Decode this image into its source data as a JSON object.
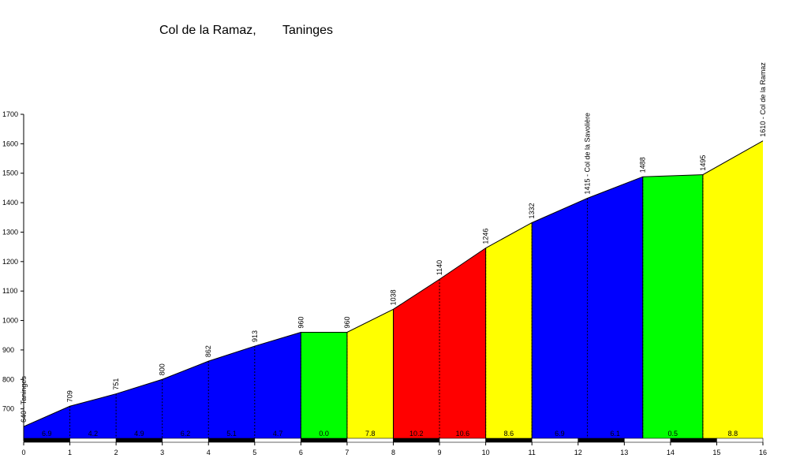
{
  "header": {
    "title": "Col de la Ramaz,",
    "subtitle": "Taninges"
  },
  "chart_data": {
    "type": "area",
    "title": "Col de la Ramaz, Taninges",
    "xlabel": "",
    "ylabel": "",
    "xlim": [
      0,
      16
    ],
    "ylim": [
      600,
      1700
    ],
    "x_ticks": [
      "0",
      "1",
      "2",
      "3",
      "4",
      "5",
      "6",
      "7",
      "8",
      "9",
      "10",
      "11",
      "12",
      "13",
      "14",
      "15",
      "16"
    ],
    "y_ticks": [
      "700",
      "800",
      "900",
      "1000",
      "1100",
      "1200",
      "1300",
      "1400",
      "1500",
      "1600",
      "1700"
    ],
    "points": [
      {
        "x": 0,
        "y": 640,
        "label": "640 - Taninges"
      },
      {
        "x": 1,
        "y": 709,
        "label": "709"
      },
      {
        "x": 2,
        "y": 751,
        "label": "751"
      },
      {
        "x": 3,
        "y": 800,
        "label": "800"
      },
      {
        "x": 4,
        "y": 862,
        "label": "862"
      },
      {
        "x": 5,
        "y": 913,
        "label": "913"
      },
      {
        "x": 6,
        "y": 960,
        "label": "960"
      },
      {
        "x": 7,
        "y": 960,
        "label": "960"
      },
      {
        "x": 8,
        "y": 1038,
        "label": "1038"
      },
      {
        "x": 9,
        "y": 1140,
        "label": "1140"
      },
      {
        "x": 10,
        "y": 1246,
        "label": "1246"
      },
      {
        "x": 11,
        "y": 1332,
        "label": "1332"
      },
      {
        "x": 12.2,
        "y": 1415,
        "label": "1415 - Col de la Savolière"
      },
      {
        "x": 13.4,
        "y": 1488,
        "label": "1488"
      },
      {
        "x": 14.7,
        "y": 1495,
        "label": "1495"
      },
      {
        "x": 16,
        "y": 1610,
        "label": "1610 - Col de la Ramaz"
      }
    ],
    "segments": [
      {
        "from": 0,
        "to": 6,
        "color": "#0000ff"
      },
      {
        "from": 6,
        "to": 7,
        "color": "#00ff00"
      },
      {
        "from": 7,
        "to": 8,
        "color": "#ffff00"
      },
      {
        "from": 8,
        "to": 10,
        "color": "#ff0000"
      },
      {
        "from": 10,
        "to": 11,
        "color": "#ffff00"
      },
      {
        "from": 11,
        "to": 13.4,
        "color": "#0000ff"
      },
      {
        "from": 13.4,
        "to": 14.7,
        "color": "#00ff00"
      },
      {
        "from": 14.7,
        "to": 16,
        "color": "#ffff00"
      }
    ],
    "gradients": [
      {
        "from": 0,
        "to": 1,
        "label": "6.9"
      },
      {
        "from": 1,
        "to": 2,
        "label": "4.2"
      },
      {
        "from": 2,
        "to": 3,
        "label": "4.9"
      },
      {
        "from": 3,
        "to": 4,
        "label": "6.2"
      },
      {
        "from": 4,
        "to": 5,
        "label": "5.1"
      },
      {
        "from": 5,
        "to": 6,
        "label": "4.7"
      },
      {
        "from": 6,
        "to": 7,
        "label": "0.0"
      },
      {
        "from": 7,
        "to": 8,
        "label": "7.8"
      },
      {
        "from": 8,
        "to": 9,
        "label": "10.2"
      },
      {
        "from": 9,
        "to": 10,
        "label": "10.6"
      },
      {
        "from": 10,
        "to": 11,
        "label": "8.6"
      },
      {
        "from": 11,
        "to": 12.2,
        "label": "6.9"
      },
      {
        "from": 12.2,
        "to": 13.4,
        "label": "6.1"
      },
      {
        "from": 13.4,
        "to": 14.7,
        "label": "0.5"
      },
      {
        "from": 14.7,
        "to": 16,
        "label": "8.8"
      }
    ],
    "km_bar_colors": [
      "#000000",
      "#ffffff"
    ],
    "grid": false,
    "legend": "none"
  }
}
